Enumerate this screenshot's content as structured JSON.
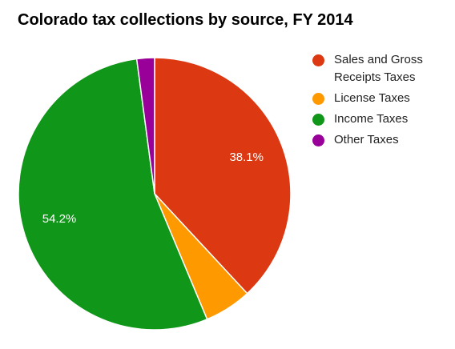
{
  "chart_data": {
    "type": "pie",
    "title": "Colorado tax collections by source, FY 2014",
    "slices": [
      {
        "name": "Sales and Gross Receipts Taxes",
        "value": 38.1,
        "color": "#dc3912",
        "label": "38.1%"
      },
      {
        "name": "License Taxes",
        "value": 5.6,
        "color": "#ff9900",
        "label": ""
      },
      {
        "name": "Income Taxes",
        "value": 54.2,
        "color": "#109618",
        "label": "54.2%"
      },
      {
        "name": "Other Taxes",
        "value": 2.1,
        "color": "#990099",
        "label": ""
      }
    ],
    "legend_position": "right"
  },
  "legend": {
    "items": [
      {
        "label": "Sales and Gross Receipts Taxes",
        "color": "#dc3912"
      },
      {
        "label": "License Taxes",
        "color": "#ff9900"
      },
      {
        "label": "Income Taxes",
        "color": "#109618"
      },
      {
        "label": "Other Taxes",
        "color": "#990099"
      }
    ]
  }
}
